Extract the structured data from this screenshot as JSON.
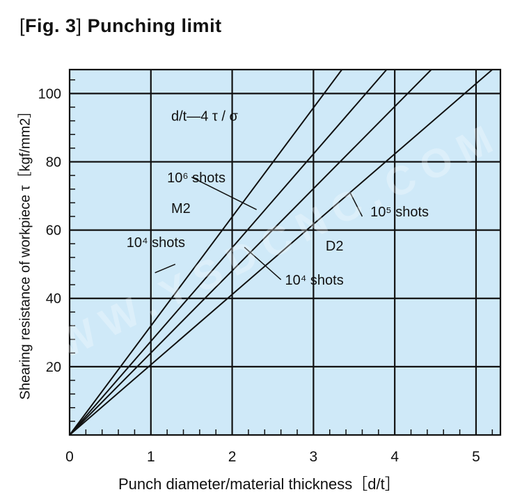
{
  "figure": {
    "label_open": "[",
    "label": "Fig. 3",
    "label_close": "]",
    "title": "Punching limit"
  },
  "watermark": "WWW.YSDCNC.COM",
  "colors": {
    "plot_background": "#cfe9f8",
    "grid": "#111111",
    "line": "#111111"
  },
  "chart_data": {
    "type": "line",
    "title": "Punching limit",
    "xlabel": "Punch diameter/material thickness［d/t］",
    "ylabel": "Shearing resistance of workpiece τ［kgf/mm2］",
    "xlim": [
      0,
      5.3
    ],
    "ylim": [
      0,
      107
    ],
    "x_ticks": [
      "0",
      "1",
      "2",
      "3",
      "4",
      "5"
    ],
    "y_ticks": [
      "20",
      "40",
      "60",
      "80",
      "100"
    ],
    "grid": true,
    "series": [
      {
        "name": "M2 10⁶ shots",
        "x": [
          0,
          3.35
        ],
        "y": [
          0,
          107
        ]
      },
      {
        "name": "M2 10⁴ shots",
        "x": [
          0,
          3.9
        ],
        "y": [
          0,
          107
        ]
      },
      {
        "name": "D2 10⁶ shots",
        "x": [
          0,
          4.45
        ],
        "y": [
          0,
          107
        ]
      },
      {
        "name": "D2 10⁵ shots",
        "x": [
          0,
          5.2
        ],
        "y": [
          0,
          107
        ]
      }
    ],
    "annotations": [
      {
        "text": "d/t—4 τ / σ",
        "x": 1.25,
        "y": 92
      },
      {
        "text": "10⁶ shots",
        "x": 1.2,
        "y": 74
      },
      {
        "text": "M2",
        "x": 1.25,
        "y": 65
      },
      {
        "text": "10⁴ shots",
        "x": 0.7,
        "y": 55
      },
      {
        "text": "D2",
        "x": 3.15,
        "y": 54
      },
      {
        "text": "10⁴ shots",
        "x": 2.65,
        "y": 44
      },
      {
        "text": "10⁵ shots",
        "x": 3.7,
        "y": 64
      }
    ]
  }
}
